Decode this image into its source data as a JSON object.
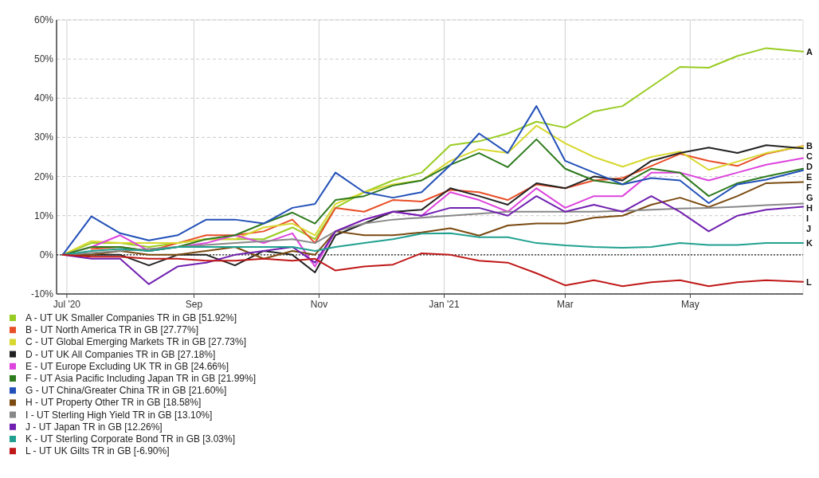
{
  "chart_data": {
    "type": "line",
    "x": [
      "2020-06-29",
      "2020-07-13",
      "2020-07-27",
      "2020-08-10",
      "2020-08-24",
      "2020-09-07",
      "2020-09-21",
      "2020-10-05",
      "2020-10-19",
      "2020-10-30",
      "2020-11-09",
      "2020-11-23",
      "2020-12-07",
      "2020-12-21",
      "2021-01-04",
      "2021-01-18",
      "2021-02-01",
      "2021-02-15",
      "2021-03-01",
      "2021-03-15",
      "2021-03-29",
      "2021-04-12",
      "2021-04-26",
      "2021-05-10",
      "2021-05-24",
      "2021-06-07",
      "2021-06-25"
    ],
    "xlim": [
      "2020-06-26",
      "2021-06-25"
    ],
    "xticks": [
      {
        "value": "2020-07-01",
        "label": "Jul '20"
      },
      {
        "value": "2020-09-01",
        "label": "Sep"
      },
      {
        "value": "2020-11-01",
        "label": "Nov"
      },
      {
        "value": "2021-01-01",
        "label": "Jan '21"
      },
      {
        "value": "2021-03-01",
        "label": "Mar"
      },
      {
        "value": "2021-05-01",
        "label": "May"
      }
    ],
    "ylim": [
      -10,
      60
    ],
    "yticks": [
      {
        "value": -10,
        "label": "-10%"
      },
      {
        "value": 0,
        "label": "0%"
      },
      {
        "value": 10,
        "label": "10%"
      },
      {
        "value": 20,
        "label": "20%"
      },
      {
        "value": 30,
        "label": "30%"
      },
      {
        "value": 40,
        "label": "40%"
      },
      {
        "value": 50,
        "label": "50%"
      },
      {
        "value": 60,
        "label": "60%"
      }
    ],
    "grid": true,
    "legend": "bottom left",
    "ref_lines": [
      {
        "axis": "y",
        "value": 0,
        "color": "#222222",
        "line_style": "dotted"
      }
    ],
    "series": [
      {
        "name": "A - UT UK Smaller Companies TR in GB [51.92%]",
        "color": "#99cc22",
        "values": [
          0,
          3,
          3,
          2,
          3,
          4,
          4,
          4,
          7,
          4,
          12,
          16,
          19,
          21,
          28,
          29,
          31,
          34,
          32.5,
          36.6,
          38,
          43,
          48,
          47.8,
          50.8,
          52.8,
          51.9
        ]
      },
      {
        "name": "B - UT North America TR in GB [27.77%]",
        "color": "#e84e28",
        "values": [
          null,
          1.5,
          2,
          1,
          3,
          5,
          5,
          6,
          9,
          3,
          12,
          11,
          14,
          13.6,
          16.6,
          16,
          14,
          18,
          17,
          19,
          19.6,
          22.7,
          25.8,
          24,
          22.7,
          25.8,
          27.8
        ]
      },
      {
        "name": "C - UT Global Emerging Markets TR in GB [27.73%]",
        "color": "#d8d830",
        "values": [
          0,
          3.5,
          3,
          3,
          3,
          4,
          4,
          7,
          8,
          5,
          13,
          16,
          18,
          19,
          24,
          27,
          26,
          33,
          28.5,
          25,
          22.5,
          25,
          26.4,
          21.7,
          23.8,
          26,
          27.7
        ]
      },
      {
        "name": "D - UT UK All Companies TR in GB [27.18%]",
        "color": "#222222",
        "values": [
          0,
          0,
          0,
          -2.7,
          0,
          0,
          -2.7,
          1,
          0,
          -4.5,
          5,
          8,
          11,
          11.5,
          17,
          15,
          12.8,
          18.3,
          17,
          20,
          19,
          24,
          26,
          27.4,
          26,
          28,
          27.2
        ]
      },
      {
        "name": "E - UT Europe Excluding UK TR in GB [24.66%]",
        "color": "#dd44dd",
        "values": [
          0,
          2,
          5,
          1,
          2,
          3,
          5,
          3,
          5.5,
          -3,
          6,
          9,
          11,
          10,
          16,
          14,
          11,
          17,
          12,
          15,
          15,
          21,
          21,
          19,
          21,
          23,
          24.7
        ]
      },
      {
        "name": "F - UT Asia Pacific Including Japan TR in GB [21.99%]",
        "color": "#2e7a1e",
        "values": [
          0,
          2,
          2,
          1,
          2,
          4,
          5,
          8,
          10.8,
          8,
          14,
          15,
          17.7,
          19,
          23,
          26,
          22.4,
          29.5,
          22,
          19,
          18,
          22,
          21,
          15,
          18.3,
          20,
          22
        ]
      },
      {
        "name": "G - UT China/Greater China TR in GB [21.60%]",
        "color": "#2250b8",
        "values": [
          0,
          9.8,
          5.5,
          3.7,
          5,
          9,
          9,
          8,
          12,
          13,
          21,
          16,
          14.6,
          16,
          22.9,
          31,
          26,
          38,
          24,
          21,
          18,
          19.6,
          19,
          13.2,
          18,
          19.2,
          21.6
        ]
      },
      {
        "name": "H - UT Property Other TR in GB [18.58%]",
        "color": "#7a4a10",
        "values": [
          0,
          0,
          1,
          0,
          0,
          1,
          2,
          -1,
          1,
          0,
          6,
          5,
          5,
          5.7,
          6.8,
          4.9,
          7.5,
          8,
          8,
          9.5,
          10,
          12.8,
          14.6,
          12.2,
          15,
          18.3,
          18.6
        ]
      },
      {
        "name": "I - UT Sterling High Yield TR in GB [13.10%]",
        "color": "#888888",
        "values": [
          0,
          0.5,
          1,
          1.5,
          2,
          2.5,
          3,
          3.5,
          4,
          3,
          6,
          8,
          9,
          9.5,
          10,
          10.5,
          11,
          11,
          11,
          11,
          11.2,
          11.5,
          11.8,
          12,
          12.3,
          12.7,
          13.1
        ]
      },
      {
        "name": "J - UT Japan TR in GB [12.26%]",
        "color": "#7020b0",
        "values": [
          0,
          -1,
          -1,
          -7.5,
          -3,
          -2,
          0,
          1,
          2,
          -2,
          6,
          9,
          11,
          10,
          12,
          12,
          10,
          15,
          11,
          12.8,
          11,
          15,
          11,
          6,
          10,
          11.5,
          12.3
        ]
      },
      {
        "name": "K - UT Sterling Corporate Bond TR in GB [3.03%]",
        "color": "#20a090",
        "values": [
          0,
          1,
          1.5,
          1,
          2,
          2,
          2,
          2,
          2,
          1,
          2,
          3,
          4,
          5.4,
          5.5,
          4.5,
          4.5,
          3,
          2.4,
          2,
          1.8,
          2,
          3,
          2.5,
          2.5,
          3,
          3
        ]
      },
      {
        "name": "L - UT UK Gilts TR in GB [-6.90%]",
        "color": "#c01818",
        "values": [
          0,
          -0.5,
          -0.5,
          -1,
          -1,
          -1.5,
          -1.5,
          -1,
          -1.5,
          -1,
          -4,
          -3,
          -2.5,
          0.4,
          0,
          -1.5,
          -2,
          -4.7,
          -7.8,
          -6.5,
          -8,
          -7,
          -6.5,
          -8,
          -7,
          -6.5,
          -6.9
        ]
      }
    ],
    "annotations": [
      "A",
      "B",
      "C",
      "D",
      "E",
      "F",
      "G",
      "H",
      "I",
      "J",
      "K",
      "L"
    ]
  }
}
